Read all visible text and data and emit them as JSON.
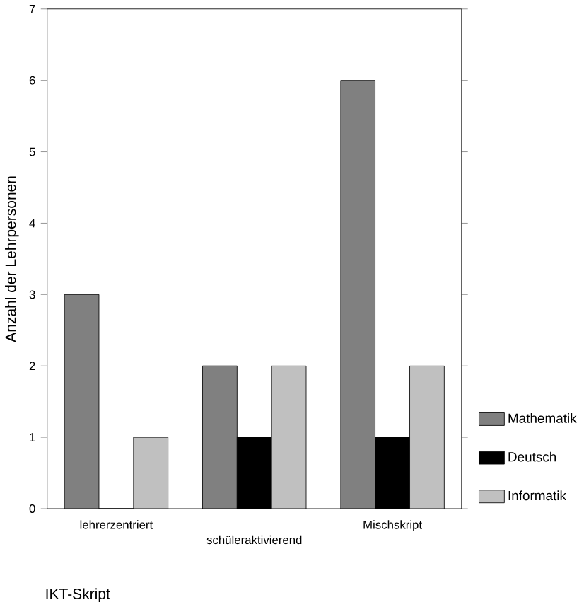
{
  "chart_data": {
    "type": "bar",
    "xlabel": "IKT-Skript",
    "ylabel": "Anzahl der Lehrpersonen",
    "categories": [
      "lehrerzentriert",
      "schüleraktivierend",
      "Mischskript"
    ],
    "series": [
      {
        "name": "Mathematik",
        "color": "#808080",
        "values": [
          3,
          2,
          6
        ]
      },
      {
        "name": "Deutsch",
        "color": "#000000",
        "values": [
          0,
          1,
          1
        ]
      },
      {
        "name": "Informatik",
        "color": "#c0c0c0",
        "values": [
          1,
          2,
          2
        ]
      }
    ],
    "ylim": [
      0,
      7
    ],
    "yticks": [
      0,
      1,
      2,
      3,
      4,
      5,
      6,
      7
    ],
    "legend": "right"
  }
}
